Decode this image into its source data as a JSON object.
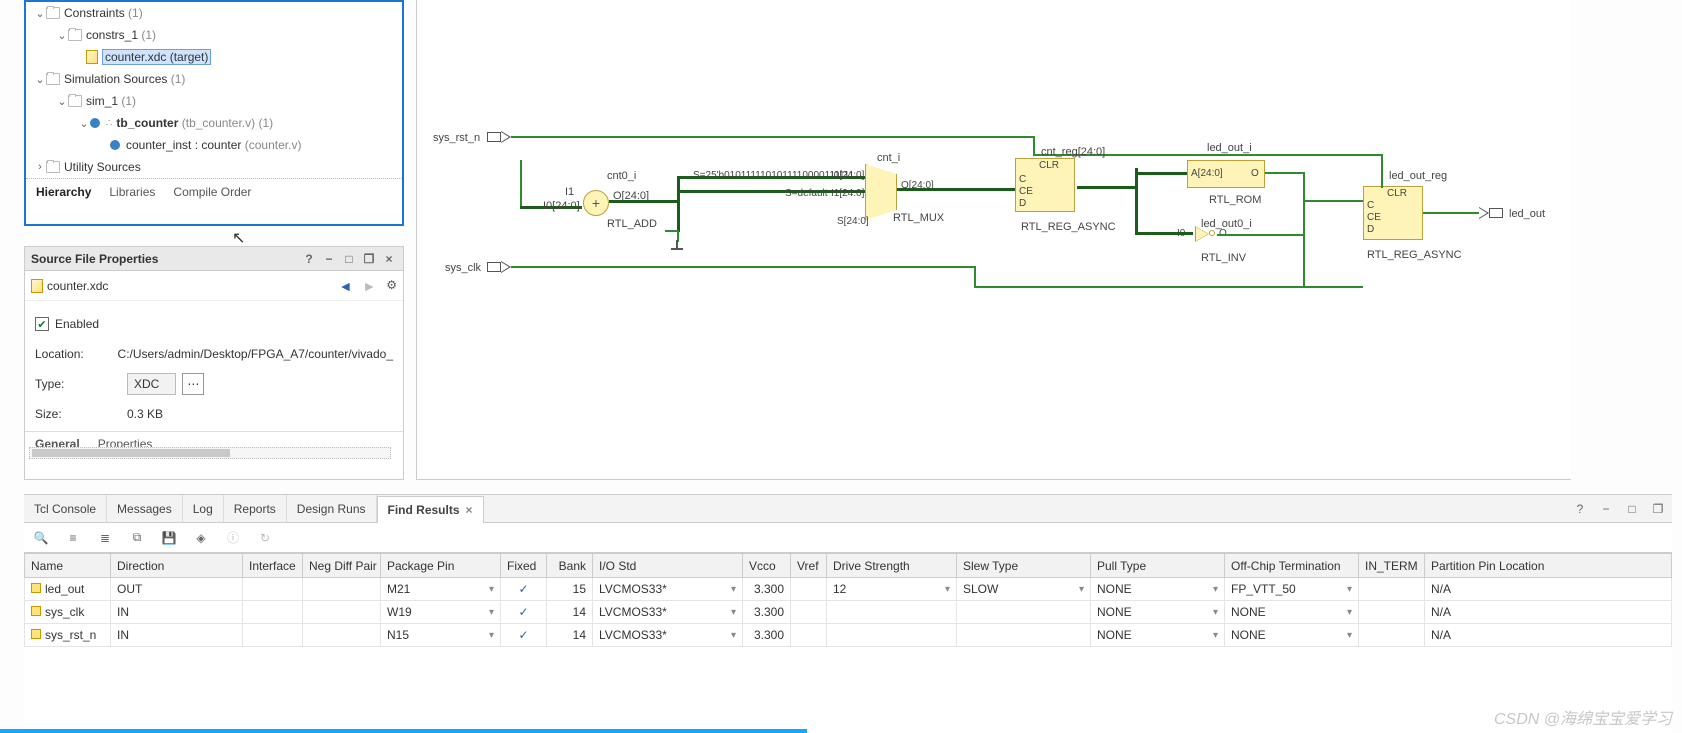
{
  "tree": {
    "constraints": {
      "label": "Constraints",
      "count": "(1)"
    },
    "constrs_1": {
      "label": "constrs_1",
      "count": "(1)"
    },
    "counter_xdc": "counter.xdc (target)",
    "sim_sources": {
      "label": "Simulation Sources",
      "count": "(1)"
    },
    "sim_1": {
      "label": "sim_1",
      "count": "(1)"
    },
    "tb_counter": {
      "label": "tb_counter",
      "file": "(tb_counter.v)",
      "count": "(1)"
    },
    "counter_inst": {
      "label": "counter_inst : counter",
      "file": "(counter.v)"
    },
    "utility": "Utility Sources",
    "tabs": {
      "hierarchy": "Hierarchy",
      "libraries": "Libraries",
      "compile": "Compile Order"
    }
  },
  "properties": {
    "title": "Source File Properties",
    "file": "counter.xdc",
    "enabled": "Enabled",
    "location_label": "Location:",
    "location": "C:/Users/admin/Desktop/FPGA_A7/counter/vivado_",
    "type_label": "Type:",
    "type": "XDC",
    "size_label": "Size:",
    "size": "0.3 KB",
    "tabs": {
      "general": "General",
      "props": "Properties"
    }
  },
  "schematic": {
    "sys_rst_n": "sys_rst_n",
    "sys_clk": "sys_clk",
    "led_out": "led_out",
    "cnt0_i": "cnt0_i",
    "rtl_add": "RTL_ADD",
    "i1": "I1",
    "i0": "I0[24:0]",
    "o": "O[24:0]",
    "s_const": "S=25'b0101111101011110000111111",
    "s_default": "S=default",
    "mux_i0": "I0[24:0]",
    "mux_i1": "I1[24:0]",
    "mux_s": "S[24:0]",
    "mux_o": "O[24:0]",
    "rtl_mux": "RTL_MUX",
    "cnt_reg": "cnt_reg[24:0]",
    "rtl_reg_async": "RTL_REG_ASYNC",
    "reg_c": "C",
    "reg_ce": "CE",
    "reg_d": "D",
    "reg_clr": "CLR",
    "led_out_i": "led_out_i",
    "rtl_rom": "RTL_ROM",
    "rom_a": "A[24:0]",
    "rom_o": "O",
    "led_out0_i": "led_out0_i",
    "rtl_inv": "RTL_INV",
    "inv_i0": "I0",
    "inv_o": "O",
    "led_out_reg": "led_out_reg",
    "cnt_i": "cnt_i"
  },
  "bottomTabs": {
    "tcl": "Tcl Console",
    "messages": "Messages",
    "log": "Log",
    "reports": "Reports",
    "designruns": "Design Runs",
    "findresults": "Find Results"
  },
  "ioTable": {
    "headers": {
      "name": "Name",
      "direction": "Direction",
      "interface": "Interface",
      "negdiff": "Neg Diff Pair",
      "pkgpin": "Package Pin",
      "fixed": "Fixed",
      "bank": "Bank",
      "iostd": "I/O Std",
      "vcco": "Vcco",
      "vref": "Vref",
      "drive": "Drive Strength",
      "slew": "Slew Type",
      "pull": "Pull Type",
      "offchip": "Off-Chip Termination",
      "interm": "IN_TERM",
      "part": "Partition Pin Location"
    },
    "rows": [
      {
        "name": "led_out",
        "dir": "OUT",
        "pin": "M21",
        "fixed": "✓",
        "bank": "15",
        "iostd": "LVCMOS33*",
        "vcco": "3.300",
        "drive": "12",
        "slew": "SLOW",
        "pull": "NONE",
        "offchip": "FP_VTT_50",
        "part": "N/A"
      },
      {
        "name": "sys_clk",
        "dir": "IN",
        "pin": "W19",
        "fixed": "✓",
        "bank": "14",
        "iostd": "LVCMOS33*",
        "vcco": "3.300",
        "drive": "",
        "slew": "",
        "pull": "NONE",
        "offchip": "NONE",
        "part": "N/A"
      },
      {
        "name": "sys_rst_n",
        "dir": "IN",
        "pin": "N15",
        "fixed": "✓",
        "bank": "14",
        "iostd": "LVCMOS33*",
        "vcco": "3.300",
        "drive": "",
        "slew": "",
        "pull": "NONE",
        "offchip": "NONE",
        "part": "N/A"
      }
    ]
  },
  "watermark": "CSDN @海绵宝宝爱学习"
}
